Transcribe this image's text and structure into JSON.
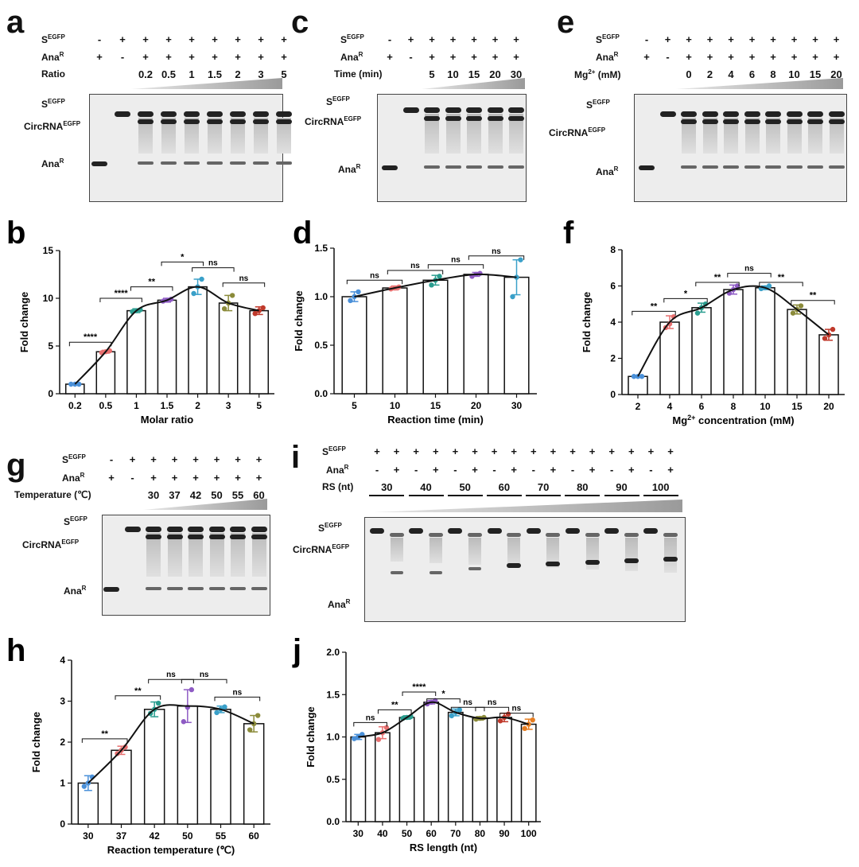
{
  "panels": {
    "a": {
      "letter": "a",
      "row1_label": "S",
      "row1_sup": "EGFP",
      "row2_label": "Ana",
      "row2_sup": "R",
      "row3_label": "Ratio",
      "row1": [
        "-",
        "+",
        "+",
        "+",
        "+",
        "+",
        "+",
        "+",
        "+"
      ],
      "row2": [
        "+",
        "-",
        "+",
        "+",
        "+",
        "+",
        "+",
        "+",
        "+"
      ],
      "row3": [
        "",
        "",
        "0.2",
        "0.5",
        "1",
        "1.5",
        "2",
        "3",
        "5"
      ],
      "gel_labels": {
        "s": "S",
        "s_sup": "EGFP",
        "circ": "CircRNA",
        "circ_sup": "EGFP",
        "ana": "Ana",
        "ana_sup": "R"
      }
    },
    "c": {
      "letter": "c",
      "row1_label": "S",
      "row1_sup": "EGFP",
      "row2_label": "Ana",
      "row2_sup": "R",
      "row3_label": "Time (min)",
      "row1": [
        "-",
        "+",
        "+",
        "+",
        "+",
        "+",
        "+"
      ],
      "row2": [
        "+",
        "-",
        "+",
        "+",
        "+",
        "+",
        "+"
      ],
      "row3": [
        "",
        "",
        "5",
        "10",
        "15",
        "20",
        "30"
      ],
      "gel_labels": {
        "s": "S",
        "s_sup": "EGFP",
        "circ": "CircRNA",
        "circ_sup": "EGFP",
        "ana": "Ana",
        "ana_sup": "R"
      }
    },
    "e": {
      "letter": "e",
      "row1_label": "S",
      "row1_sup": "EGFP",
      "row2_label": "Ana",
      "row2_sup": "R",
      "row3_label": "Mg",
      "row3_sup": "2+",
      "row3_suffix": " (mM)",
      "row1": [
        "-",
        "+",
        "+",
        "+",
        "+",
        "+",
        "+",
        "+",
        "+",
        "+"
      ],
      "row2": [
        "+",
        "-",
        "+",
        "+",
        "+",
        "+",
        "+",
        "+",
        "+",
        "+"
      ],
      "row3": [
        "",
        "",
        "0",
        "2",
        "4",
        "6",
        "8",
        "10",
        "15",
        "20"
      ],
      "gel_labels": {
        "s": "S",
        "s_sup": "EGFP",
        "circ": "CircRNA",
        "circ_sup": "EGFP",
        "ana": "Ana",
        "ana_sup": "R"
      }
    },
    "g": {
      "letter": "g",
      "row1_label": "S",
      "row1_sup": "EGFP",
      "row2_label": "Ana",
      "row2_sup": "R",
      "row3_label": "Temperature (℃)",
      "row1": [
        "-",
        "+",
        "+",
        "+",
        "+",
        "+",
        "+",
        "+"
      ],
      "row2": [
        "+",
        "-",
        "+",
        "+",
        "+",
        "+",
        "+",
        "+"
      ],
      "row3": [
        "",
        "",
        "30",
        "37",
        "42",
        "50",
        "55",
        "60"
      ],
      "gel_labels": {
        "s": "S",
        "s_sup": "EGFP",
        "circ": "CircRNA",
        "circ_sup": "EGFP",
        "ana": "Ana",
        "ana_sup": "R"
      }
    },
    "i": {
      "letter": "i",
      "row1_label": "S",
      "row1_sup": "EGFP",
      "row2_label": "Ana",
      "row2_sup": "R",
      "row3_label": "RS (nt)",
      "row1": [
        "+",
        "+",
        "+",
        "+",
        "+",
        "+",
        "+",
        "+",
        "+",
        "+",
        "+",
        "+",
        "+",
        "+",
        "+",
        "+"
      ],
      "row2": [
        "-",
        "+",
        "-",
        "+",
        "-",
        "+",
        "-",
        "+",
        "-",
        "+",
        "-",
        "+",
        "-",
        "+",
        "-",
        "+"
      ],
      "groups": [
        "30",
        "40",
        "50",
        "60",
        "70",
        "80",
        "90",
        "100"
      ],
      "gel_labels": {
        "s": "S",
        "s_sup": "EGFP",
        "circ": "CircRNA",
        "circ_sup": "EGFP",
        "ana": "Ana",
        "ana_sup": "R"
      }
    }
  },
  "chart_data": [
    {
      "panel": "b",
      "type": "bar",
      "categories": [
        "0.2",
        "0.5",
        "1",
        "1.5",
        "2",
        "3",
        "5"
      ],
      "values": [
        1.0,
        4.4,
        8.7,
        9.8,
        11.2,
        9.5,
        8.7
      ],
      "errors": [
        0.05,
        0.15,
        0.2,
        0.2,
        0.8,
        0.8,
        0.4
      ],
      "points": [
        [
          1.0,
          1.0,
          1.0
        ],
        [
          4.3,
          4.4,
          4.5
        ],
        [
          8.6,
          8.7,
          8.8
        ],
        [
          9.7,
          9.8,
          9.9
        ],
        [
          10.5,
          11.2,
          12.0
        ],
        [
          8.9,
          9.5,
          10.3
        ],
        [
          8.4,
          8.7,
          9.0
        ]
      ],
      "point_colors": [
        "#4a90d9",
        "#e76f6f",
        "#2a9d8f",
        "#8e5bc4",
        "#3aa0c9",
        "#8b8b3a",
        "#c0392b"
      ],
      "xlabel": "Molar ratio",
      "ylabel": "Fold change",
      "ylim": [
        0,
        15
      ],
      "yticks": [
        0,
        5,
        10,
        15
      ],
      "sig": [
        {
          "a": 0,
          "b": 1,
          "label": "****",
          "y": 5.4
        },
        {
          "a": 1,
          "b": 2,
          "label": "****",
          "y": 10.0
        },
        {
          "a": 2,
          "b": 3,
          "label": "**",
          "y": 11.2
        },
        {
          "a": 3,
          "b": 4,
          "label": "*",
          "y": 13.8
        },
        {
          "a": 4,
          "b": 5,
          "label": "ns",
          "y": 13.2
        },
        {
          "a": 5,
          "b": 6,
          "label": "ns",
          "y": 11.6
        }
      ]
    },
    {
      "panel": "d",
      "type": "bar",
      "categories": [
        "5",
        "10",
        "15",
        "20",
        "30"
      ],
      "values": [
        1.0,
        1.09,
        1.17,
        1.23,
        1.2
      ],
      "errors": [
        0.05,
        0.02,
        0.05,
        0.02,
        0.18
      ],
      "points": [
        [
          0.96,
          1.0,
          1.05
        ],
        [
          1.08,
          1.09,
          1.1
        ],
        [
          1.12,
          1.17,
          1.21
        ],
        [
          1.21,
          1.23,
          1.24
        ],
        [
          1.0,
          1.2,
          1.38
        ]
      ],
      "point_colors": [
        "#4a90d9",
        "#e76f6f",
        "#2a9d8f",
        "#8e5bc4",
        "#3aa0c9"
      ],
      "xlabel": "Reaction time (min)",
      "ylabel": "Fold change",
      "ylim": [
        0,
        1.5
      ],
      "yticks": [
        0.0,
        0.5,
        1.0,
        1.5
      ],
      "sig": [
        {
          "a": 0,
          "b": 1,
          "label": "ns",
          "y": 1.17
        },
        {
          "a": 1,
          "b": 2,
          "label": "ns",
          "y": 1.27
        },
        {
          "a": 2,
          "b": 3,
          "label": "ns",
          "y": 1.33
        },
        {
          "a": 3,
          "b": 4,
          "label": "ns",
          "y": 1.42
        }
      ]
    },
    {
      "panel": "f",
      "type": "bar",
      "categories": [
        "2",
        "4",
        "6",
        "8",
        "10",
        "15",
        "20"
      ],
      "values": [
        1.0,
        4.0,
        4.8,
        5.8,
        5.9,
        4.7,
        3.3
      ],
      "errors": [
        0.05,
        0.35,
        0.25,
        0.25,
        0.1,
        0.25,
        0.3
      ],
      "points": [
        [
          1.0,
          1.0,
          1.0
        ],
        [
          3.7,
          3.9,
          4.3
        ],
        [
          4.5,
          4.8,
          5.0
        ],
        [
          5.6,
          5.8,
          6.0
        ],
        [
          5.85,
          5.9,
          6.0
        ],
        [
          4.5,
          4.7,
          4.9
        ],
        [
          3.1,
          3.3,
          3.6
        ]
      ],
      "point_colors": [
        "#4a90d9",
        "#e76f6f",
        "#2a9d8f",
        "#8e5bc4",
        "#3aa0c9",
        "#8b8b3a",
        "#c0392b"
      ],
      "xlabel": "Mg2+ concentration (mM)",
      "ylabel": "Fold change",
      "ylim": [
        0,
        8
      ],
      "yticks": [
        0,
        2,
        4,
        6,
        8
      ],
      "sig": [
        {
          "a": 0,
          "b": 1,
          "label": "**",
          "y": 4.6
        },
        {
          "a": 1,
          "b": 2,
          "label": "*",
          "y": 5.3
        },
        {
          "a": 2,
          "b": 3,
          "label": "**",
          "y": 6.2
        },
        {
          "a": 3,
          "b": 4,
          "label": "ns",
          "y": 6.7
        },
        {
          "a": 4,
          "b": 5,
          "label": "**",
          "y": 6.2
        },
        {
          "a": 5,
          "b": 6,
          "label": "**",
          "y": 5.2
        }
      ]
    },
    {
      "panel": "h",
      "type": "bar",
      "categories": [
        "30",
        "37",
        "42",
        "50",
        "55",
        "60"
      ],
      "values": [
        1.0,
        1.8,
        2.8,
        2.88,
        2.8,
        2.45
      ],
      "errors": [
        0.18,
        0.1,
        0.18,
        0.4,
        0.08,
        0.2
      ],
      "points": [
        [
          0.92,
          1.0,
          1.15
        ],
        [
          1.72,
          1.8,
          1.88
        ],
        [
          2.7,
          2.8,
          2.95
        ],
        [
          2.5,
          2.85,
          3.28
        ],
        [
          2.72,
          2.8,
          2.86
        ],
        [
          2.3,
          2.45,
          2.65
        ]
      ],
      "point_colors": [
        "#4a90d9",
        "#e76f6f",
        "#2a9d8f",
        "#8e5bc4",
        "#3aa0c9",
        "#8b8b3a"
      ],
      "xlabel": "Reaction temperature (℃)",
      "ylabel": "Fold change",
      "ylim": [
        0,
        4
      ],
      "yticks": [
        0,
        1,
        2,
        3,
        4
      ],
      "sig": [
        {
          "a": 0,
          "b": 1,
          "label": "**",
          "y": 2.08
        },
        {
          "a": 1,
          "b": 2,
          "label": "**",
          "y": 3.13
        },
        {
          "a": 2,
          "b": 3,
          "label": "ns",
          "y": 3.53
        },
        {
          "a": 3,
          "b": 4,
          "label": "ns",
          "y": 3.53
        },
        {
          "a": 4,
          "b": 5,
          "label": "ns",
          "y": 3.1
        }
      ]
    },
    {
      "panel": "j",
      "type": "bar",
      "categories": [
        "30",
        "40",
        "50",
        "60",
        "70",
        "80",
        "90",
        "100"
      ],
      "values": [
        1.0,
        1.05,
        1.23,
        1.41,
        1.29,
        1.22,
        1.23,
        1.15
      ],
      "errors": [
        0.03,
        0.07,
        0.02,
        0.02,
        0.04,
        0.02,
        0.05,
        0.06
      ],
      "points": [
        [
          0.98,
          1.0,
          1.03
        ],
        [
          0.97,
          1.05,
          1.11
        ],
        [
          1.22,
          1.23,
          1.24
        ],
        [
          1.39,
          1.41,
          1.43
        ],
        [
          1.25,
          1.29,
          1.32
        ],
        [
          1.21,
          1.22,
          1.23
        ],
        [
          1.19,
          1.23,
          1.27
        ],
        [
          1.1,
          1.15,
          1.2
        ]
      ],
      "point_colors": [
        "#4a90d9",
        "#e76f6f",
        "#2a9d8f",
        "#8e5bc4",
        "#3aa0c9",
        "#8b8b3a",
        "#c0392b",
        "#e67e22"
      ],
      "xlabel": "RS length (nt)",
      "ylabel": "Fold change",
      "ylim": [
        0,
        2.0
      ],
      "yticks": [
        0.0,
        0.5,
        1.0,
        1.5,
        2.0
      ],
      "sig": [
        {
          "a": 0,
          "b": 1,
          "label": "ns",
          "y": 1.17
        },
        {
          "a": 1,
          "b": 2,
          "label": "**",
          "y": 1.32
        },
        {
          "a": 2,
          "b": 3,
          "label": "****",
          "y": 1.53
        },
        {
          "a": 3,
          "b": 4,
          "label": "*",
          "y": 1.45
        },
        {
          "a": 4,
          "b": 5,
          "label": "ns",
          "y": 1.35
        },
        {
          "a": 5,
          "b": 6,
          "label": "ns",
          "y": 1.35
        },
        {
          "a": 6,
          "b": 7,
          "label": "ns",
          "y": 1.28
        }
      ]
    }
  ]
}
